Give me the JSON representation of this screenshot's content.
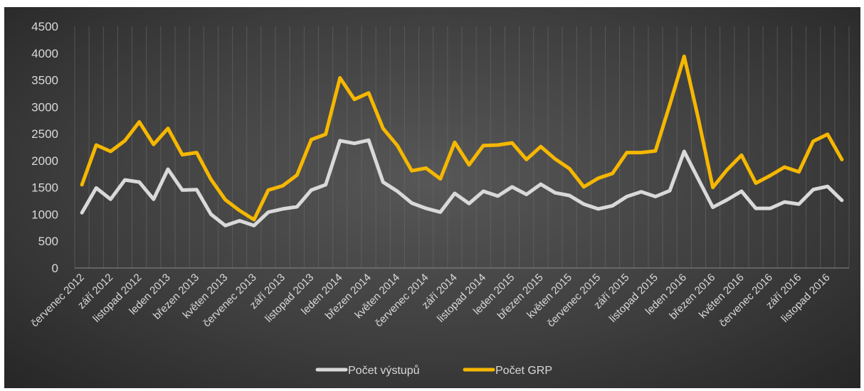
{
  "chart_data": {
    "type": "line",
    "title": "",
    "xlabel": "",
    "ylabel": "",
    "ylim": [
      0,
      4500
    ],
    "yticks": [
      0,
      500,
      1000,
      1500,
      2000,
      2500,
      3000,
      3500,
      4000,
      4500
    ],
    "grid": "vertical minor gridlines",
    "legend_position": "bottom",
    "x": [
      "červenec 2012",
      "srpen 2012",
      "září 2012",
      "říjen 2012",
      "listopad 2012",
      "prosinec 2012",
      "leden 2013",
      "únor 2013",
      "březen 2013",
      "duben 2013",
      "květen 2013",
      "červen 2013",
      "červenec 2013",
      "srpen 2013",
      "září 2013",
      "říjen 2013",
      "listopad 2013",
      "prosinec 2013",
      "leden 2014",
      "únor 2014",
      "březen 2014",
      "duben 2014",
      "květen 2014",
      "červen 2014",
      "červenec 2014",
      "srpen 2014",
      "září 2014",
      "říjen 2014",
      "listopad 2014",
      "prosinec 2014",
      "leden 2015",
      "únor 2015",
      "březen 2015",
      "duben 2015",
      "květen 2015",
      "červen 2015",
      "červenec 2015",
      "srpen 2015",
      "září 2015",
      "říjen 2015",
      "listopad 2015",
      "prosinec 2015",
      "leden 2016",
      "únor 2016",
      "březen 2016",
      "duben 2016",
      "květen 2016",
      "červen 2016",
      "červenec 2016",
      "srpen 2016",
      "září 2016",
      "říjen 2016",
      "listopad 2016",
      "prosinec 2016"
    ],
    "x_tick_labels": [
      "červenec 2012",
      "září 2012",
      "listopad 2012",
      "leden 2013",
      "březen 2013",
      "květen 2013",
      "červenec 2013",
      "září 2013",
      "listopad 2013",
      "leden 2014",
      "březen 2014",
      "květen 2014",
      "červenec 2014",
      "září 2014",
      "listopad 2014",
      "leden 2015",
      "březen 2015",
      "květen 2015",
      "červenec 2015",
      "září 2015",
      "listopad 2015",
      "leden 2016",
      "březen 2016",
      "květen 2016",
      "červenec 2016",
      "září 2016",
      "listopad 2016"
    ],
    "series": [
      {
        "name": "Počet výstupů",
        "color": "#d9d9d9",
        "values": [
          1030,
          1490,
          1280,
          1640,
          1600,
          1280,
          1840,
          1450,
          1460,
          1000,
          790,
          880,
          790,
          1040,
          1100,
          1140,
          1450,
          1550,
          2370,
          2320,
          2380,
          1600,
          1430,
          1210,
          1110,
          1040,
          1390,
          1200,
          1430,
          1340,
          1510,
          1370,
          1560,
          1400,
          1350,
          1190,
          1100,
          1160,
          1330,
          1420,
          1330,
          1440,
          2170,
          1650,
          1130,
          1270,
          1430,
          1110,
          1110,
          1230,
          1190,
          1460,
          1520,
          1260
        ]
      },
      {
        "name": "Počet GRP",
        "color": "#f5b700",
        "values": [
          1550,
          2290,
          2170,
          2370,
          2720,
          2300,
          2600,
          2110,
          2150,
          1650,
          1270,
          1070,
          900,
          1450,
          1530,
          1730,
          2390,
          2490,
          3540,
          3140,
          3260,
          2600,
          2280,
          1810,
          1860,
          1660,
          2340,
          1920,
          2280,
          2290,
          2330,
          2020,
          2260,
          2030,
          1850,
          1510,
          1670,
          1760,
          2150,
          2150,
          2180,
          3040,
          3940,
          2770,
          1500,
          1830,
          2100,
          1580,
          1720,
          1880,
          1790,
          2360,
          2490,
          2020
        ]
      }
    ]
  }
}
